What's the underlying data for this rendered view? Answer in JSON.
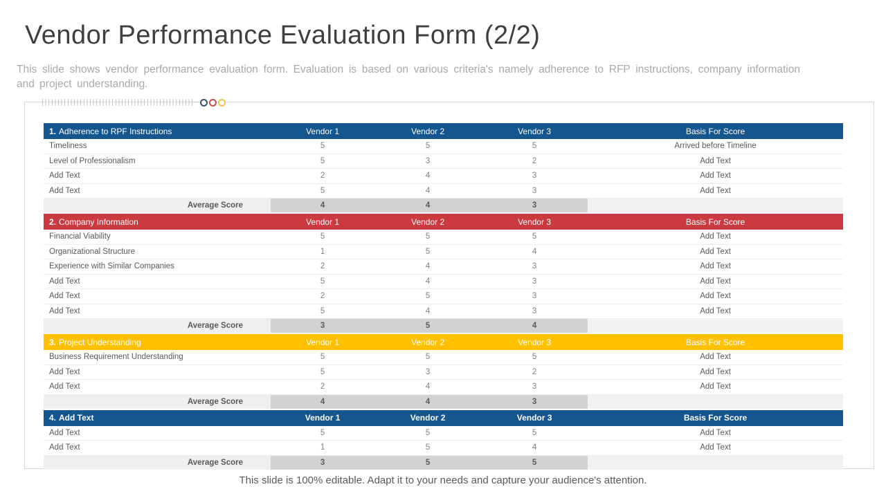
{
  "slide": {
    "title": "Vendor Performance Evaluation Form (2/2)",
    "subtitle": "This slide shows vendor performance evaluation form. Evaluation is based on various criteria's namely adherence to RFP instructions, company information and project understanding.",
    "footer": "This slide is 100% editable. Adapt it to your needs and capture your audience's attention."
  },
  "decoration": {
    "dot_colors": [
      "#35506b",
      "#c0504d",
      "#efc24c"
    ]
  },
  "table": {
    "columns": [
      "Vendor 1",
      "Vendor 2",
      "Vendor 3",
      "Basis For Score"
    ],
    "average_label": "Average Score",
    "sections": [
      {
        "num": "1.",
        "text": "Adherence to RPF Instructions",
        "color": "#15568f",
        "bold": false,
        "rows": [
          {
            "criteria": "Timeliness",
            "scores": [
              "5",
              "5",
              "5"
            ],
            "basis": "Arrived before Timeline"
          },
          {
            "criteria": "Level of Professionalism",
            "scores": [
              "5",
              "3",
              "2"
            ],
            "basis": "Add Text"
          },
          {
            "criteria": "Add Text",
            "scores": [
              "2",
              "4",
              "3"
            ],
            "basis": "Add Text"
          },
          {
            "criteria": "Add Text",
            "scores": [
              "5",
              "4",
              "3"
            ],
            "basis": "Add Text"
          }
        ],
        "average": [
          "4",
          "4",
          "3"
        ]
      },
      {
        "num": "2.",
        "text": "Company Information",
        "color": "#cb3a40",
        "bold": false,
        "rows": [
          {
            "criteria": "Financial Viability",
            "scores": [
              "5",
              "5",
              "5"
            ],
            "basis": "Add Text"
          },
          {
            "criteria": "Organizational Structure",
            "scores": [
              "1",
              "5",
              "4"
            ],
            "basis": "Add Text"
          },
          {
            "criteria": "Experience with Similar Companies",
            "scores": [
              "2",
              "4",
              "3"
            ],
            "basis": "Add Text"
          },
          {
            "criteria": "Add Text",
            "scores": [
              "5",
              "4",
              "3"
            ],
            "basis": "Add Text"
          },
          {
            "criteria": "Add Text",
            "scores": [
              "2",
              "5",
              "3"
            ],
            "basis": "Add Text"
          },
          {
            "criteria": "Add Text",
            "scores": [
              "5",
              "4",
              "3"
            ],
            "basis": "Add Text"
          }
        ],
        "average": [
          "3",
          "5",
          "4"
        ]
      },
      {
        "num": "3.",
        "text": "Project Understanding",
        "color": "#ffc000",
        "bold": false,
        "rows": [
          {
            "criteria": "Business Requirement Understanding",
            "scores": [
              "5",
              "5",
              "5"
            ],
            "basis": "Add Text"
          },
          {
            "criteria": "Add Text",
            "scores": [
              "5",
              "3",
              "2"
            ],
            "basis": "Add Text"
          },
          {
            "criteria": "Add Text",
            "scores": [
              "2",
              "4",
              "3"
            ],
            "basis": "Add Text"
          }
        ],
        "average": [
          "4",
          "4",
          "3"
        ]
      },
      {
        "num": "4.",
        "text": "Add Text",
        "color": "#15568f",
        "bold": true,
        "rows": [
          {
            "criteria": "Add Text",
            "scores": [
              "5",
              "5",
              "5"
            ],
            "basis": "Add Text"
          },
          {
            "criteria": "Add Text",
            "scores": [
              "1",
              "5",
              "4"
            ],
            "basis": "Add Text"
          }
        ],
        "average": [
          "3",
          "5",
          "5"
        ]
      }
    ]
  }
}
